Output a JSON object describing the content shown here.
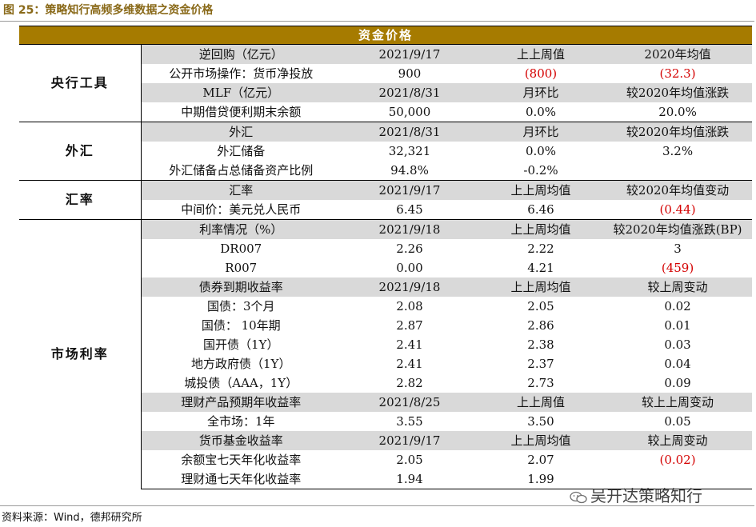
{
  "figure_title": "图 25：策略知行高频多维数据之资金价格",
  "table_header": "资金价格",
  "sections": {
    "central_bank": "央行工具",
    "fx": "外汇",
    "exchange_rate": "汇率",
    "market_rates": "市场利率"
  },
  "rows": [
    {
      "label": "逆回购（亿元）",
      "v1": "2021/9/17",
      "v2": "上上周值",
      "v3": "2020年均值",
      "shaded": true
    },
    {
      "label": "公开市场操作：货币净投放",
      "v1": "900",
      "v2": "(800)",
      "v3": "(32.3)"
    },
    {
      "label": "MLF（亿元）",
      "v1": "2021/8/31",
      "v2": "月环比",
      "v3": "较2020年均值涨跌",
      "shaded": true
    },
    {
      "label": "中期借贷便利期末余额",
      "v1": "50,000",
      "v2": "0.0%",
      "v3": "20.0%"
    },
    {
      "label": "外汇",
      "v1": "2021/8/31",
      "v2": "月环比",
      "v3": "较2020年均值涨跌",
      "shaded": true
    },
    {
      "label": "外汇储备",
      "v1": "32,321",
      "v2": "0.0%",
      "v3": "3.2%"
    },
    {
      "label": "外汇储备占总储备资产比例",
      "v1": "94.8%",
      "v2": "-0.2%",
      "v3": ""
    },
    {
      "label": "汇率",
      "v1": "2021/9/17",
      "v2": "上上周均值",
      "v3": "较2020年均值变动",
      "shaded": true
    },
    {
      "label": "中间价：美元兑人民币",
      "v1": "6.45",
      "v2": "6.46",
      "v3": "(0.44)"
    },
    {
      "label": "利率情况（%）",
      "v1": "2021/9/18",
      "v2": "上上周均值",
      "v3": "较2020年均值涨跌(BP)",
      "shaded": true
    },
    {
      "label": "DR007",
      "v1": "2.26",
      "v2": "2.22",
      "v3": "3"
    },
    {
      "label": "R007",
      "v1": "0.00",
      "v2": "4.21",
      "v3": "(459)"
    },
    {
      "label": "债券到期收益率",
      "v1": "2021/9/18",
      "v2": "上上周均值",
      "v3": "较上周变动",
      "shaded": true
    },
    {
      "label": "国债：3个月",
      "v1": "2.08",
      "v2": "2.05",
      "v3": "0.02"
    },
    {
      "label": "国债： 10年期",
      "v1": "2.87",
      "v2": "2.86",
      "v3": "0.01"
    },
    {
      "label": "国开债（1Y）",
      "v1": "2.41",
      "v2": "2.38",
      "v3": "0.03"
    },
    {
      "label": "地方政府债（1Y）",
      "v1": "2.41",
      "v2": "2.37",
      "v3": "0.04"
    },
    {
      "label": "城投债（AAA，1Y）",
      "v1": "2.82",
      "v2": "2.73",
      "v3": "0.09"
    },
    {
      "label": "理财产品预期年收益率",
      "v1": "2021/8/25",
      "v2": "上上周值",
      "v3": "较上上周变动",
      "shaded": true
    },
    {
      "label": "全市场：1年",
      "v1": "3.55",
      "v2": "3.50",
      "v3": "0.05"
    },
    {
      "label": "货币基金收益率",
      "v1": "2021/9/17",
      "v2": "上上周均值",
      "v3": "较上周变动",
      "shaded": true
    },
    {
      "label": "余额宝七天年化收益率",
      "v1": "2.05",
      "v2": "2.07",
      "v3": "(0.02)"
    },
    {
      "label": "理财通七天年化收益率",
      "v1": "1.94",
      "v2": "1.99",
      "v3": ""
    }
  ],
  "footer": "资料来源：Wind，德邦研究所",
  "watermark": "吴开达策略知行",
  "colors": {
    "header_bg": "#a67b00",
    "shade": "#d9d9d9",
    "negative": "#d40000"
  }
}
